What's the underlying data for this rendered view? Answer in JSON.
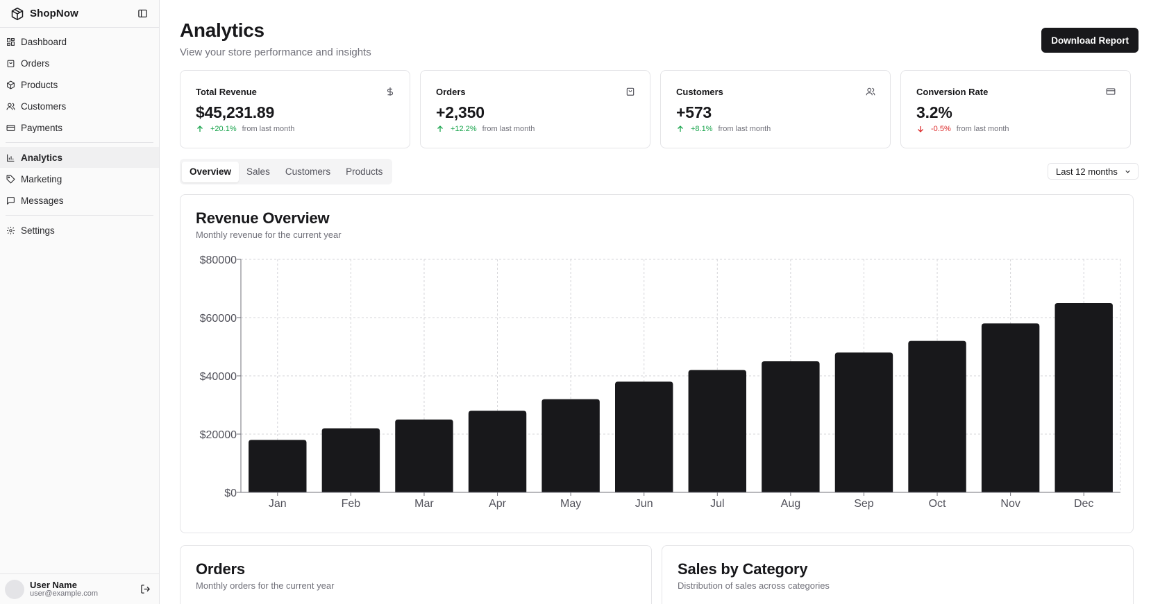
{
  "sidebar": {
    "brand": "ShopNow",
    "items": [
      {
        "label": "Dashboard",
        "icon": "dashboard-icon",
        "active": false
      },
      {
        "label": "Orders",
        "icon": "shopping-bag-icon",
        "active": false
      },
      {
        "label": "Products",
        "icon": "package-icon",
        "active": false
      },
      {
        "label": "Customers",
        "icon": "users-icon",
        "active": false
      },
      {
        "label": "Payments",
        "icon": "credit-card-icon",
        "active": false
      },
      {
        "label": "Analytics",
        "icon": "bar-chart-icon",
        "active": true
      },
      {
        "label": "Marketing",
        "icon": "tag-icon",
        "active": false
      },
      {
        "label": "Messages",
        "icon": "message-icon",
        "active": false
      },
      {
        "label": "Settings",
        "icon": "gear-icon",
        "active": false
      }
    ],
    "user": {
      "name": "User Name",
      "email": "user@example.com"
    }
  },
  "header": {
    "title": "Analytics",
    "subtitle": "View your store performance and insights",
    "download_label": "Download Report"
  },
  "stats": [
    {
      "label": "Total Revenue",
      "icon": "dollar-icon",
      "value": "$45,231.89",
      "delta": "+20.1%",
      "direction": "up",
      "suffix": "from last month"
    },
    {
      "label": "Orders",
      "icon": "shopping-bag-icon",
      "value": "+2,350",
      "delta": "+12.2%",
      "direction": "up",
      "suffix": "from last month"
    },
    {
      "label": "Customers",
      "icon": "users-icon",
      "value": "+573",
      "delta": "+8.1%",
      "direction": "up",
      "suffix": "from last month"
    },
    {
      "label": "Conversion Rate",
      "icon": "credit-card-icon",
      "value": "3.2%",
      "delta": "-0.5%",
      "direction": "down",
      "suffix": "from last month"
    }
  ],
  "tabs": [
    {
      "label": "Overview",
      "active": true
    },
    {
      "label": "Sales",
      "active": false
    },
    {
      "label": "Customers",
      "active": false
    },
    {
      "label": "Products",
      "active": false
    }
  ],
  "range": {
    "selected": "Last 12 months"
  },
  "revenue_card": {
    "title": "Revenue Overview",
    "subtitle": "Monthly revenue for the current year"
  },
  "orders_card": {
    "title": "Orders",
    "subtitle": "Monthly orders for the current year"
  },
  "category_card": {
    "title": "Sales by Category",
    "subtitle": "Distribution of sales across categories"
  },
  "colors": {
    "accent": "#18181b",
    "up": "#16a34a",
    "down": "#dc2626",
    "muted": "#71717a",
    "border": "#e4e4e7"
  },
  "chart_data": {
    "type": "bar",
    "title": "Revenue Overview",
    "categories": [
      "Jan",
      "Feb",
      "Mar",
      "Apr",
      "May",
      "Jun",
      "Jul",
      "Aug",
      "Sep",
      "Oct",
      "Nov",
      "Dec"
    ],
    "values": [
      18000,
      22000,
      25000,
      28000,
      32000,
      38000,
      42000,
      45000,
      48000,
      52000,
      58000,
      65000
    ],
    "ylim": [
      0,
      80000
    ],
    "yticks": [
      0,
      20000,
      40000,
      60000,
      80000
    ],
    "ytick_labels": [
      "$0",
      "$20000",
      "$40000",
      "$60000",
      "$80000"
    ],
    "grid": true,
    "bar_color": "#18181b"
  }
}
